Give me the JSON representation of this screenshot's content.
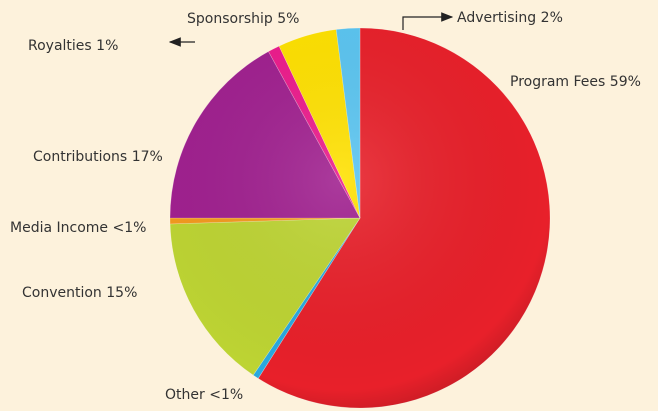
{
  "chart_data": {
    "type": "pie",
    "categories": [
      "Program Fees",
      "Other",
      "Convention",
      "Media Income",
      "Contributions",
      "Royalties",
      "Sponsorship",
      "Advertising"
    ],
    "values": [
      59,
      0.5,
      15,
      0.5,
      17,
      1,
      5,
      2
    ],
    "value_labels": [
      "59%",
      "<1%",
      "15%",
      "<1%",
      "17%",
      "1%",
      "5%",
      "2%"
    ],
    "colors": [
      "#e8202a",
      "#29a9e0",
      "#bdd433",
      "#f39a1e",
      "#a0208f",
      "#ec1b8c",
      "#ffe100",
      "#5bc5f1"
    ]
  }
}
